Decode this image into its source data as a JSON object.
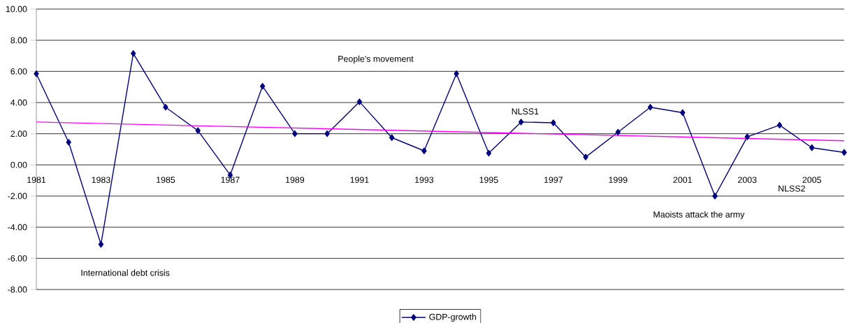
{
  "chart_data": {
    "type": "line",
    "x": [
      1981,
      1982,
      1983,
      1984,
      1985,
      1986,
      1987,
      1988,
      1989,
      1990,
      1991,
      1992,
      1993,
      1994,
      1995,
      1996,
      1997,
      1998,
      1999,
      2000,
      2001,
      2002,
      2003,
      2004,
      2005,
      2006
    ],
    "series": [
      {
        "name": "GDP-growth",
        "color": "#000080",
        "marker": "diamond",
        "values": [
          5.85,
          1.45,
          -5.1,
          7.15,
          3.7,
          2.2,
          -0.65,
          5.05,
          2.0,
          2.0,
          4.05,
          1.75,
          0.9,
          5.85,
          0.75,
          2.75,
          2.7,
          0.5,
          2.1,
          3.7,
          3.35,
          -2.0,
          1.8,
          2.55,
          1.1,
          0.8
        ]
      },
      {
        "type": "line",
        "color": "#ff00ff",
        "marker": "none",
        "x": [
          1981,
          2006
        ],
        "values": [
          2.75,
          1.55
        ]
      }
    ],
    "xlim": [
      1981,
      2006
    ],
    "xticks": [
      1981,
      1983,
      1985,
      1987,
      1989,
      1991,
      1993,
      1995,
      1997,
      1999,
      2001,
      2003,
      2005
    ],
    "ylim": [
      -8,
      10
    ],
    "yticks": [
      {
        "value": -8,
        "label": "-8.00"
      },
      {
        "value": -6,
        "label": "-6.00"
      },
      {
        "value": -4,
        "label": "-4.00"
      },
      {
        "value": -2,
        "label": "-2.00"
      },
      {
        "value": 0,
        "label": "0.00"
      },
      {
        "value": 2,
        "label": "2.00"
      },
      {
        "value": 4,
        "label": "4.00"
      },
      {
        "value": 6,
        "label": "6.00"
      },
      {
        "value": 8,
        "label": "8.00"
      },
      {
        "value": 10,
        "label": "10.00"
      }
    ],
    "grid": "y",
    "legend": "bottom",
    "line_style": "solid",
    "annotations": [
      "International debt crisis",
      "People's movement",
      "NLSS1",
      "Maoists attack the army",
      "NLSS2"
    ]
  }
}
